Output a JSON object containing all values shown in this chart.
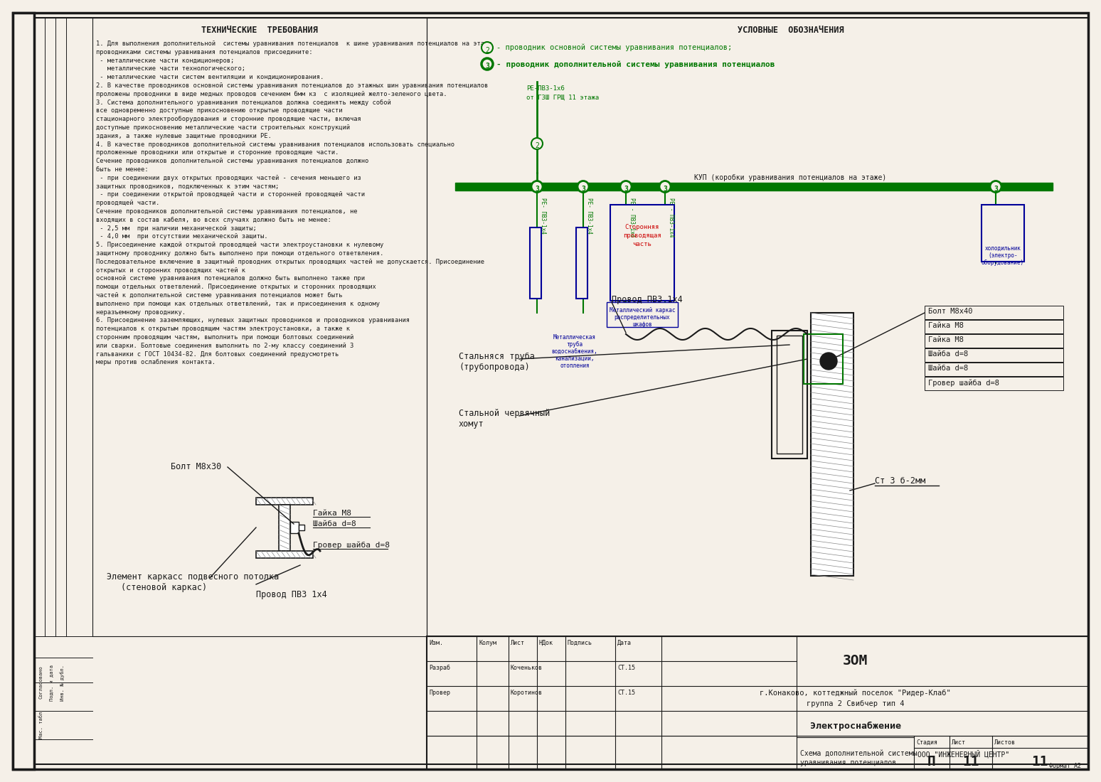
{
  "title": "ТЕХНИЧЕСКИЕ  ТРЕБОВАНИЯ",
  "legend_title": "УСЛОВНЫЕ  ОБОЗНАЧЕНИЯ",
  "legend_item1": "- проводник основной системы уравнивания потенциалов;",
  "legend_item2": "- проводник дополнительной системы уравнивания потенциалов",
  "legend_num1": "2",
  "legend_num2": "3",
  "tech_lines": [
    "1. Для выполнения дополнительной  системы уравнивания потенциалов  к шине уравнивания потенциалов на этаже",
    "проводниками системы уравнивания потенциалов присоедините:",
    " - металлические части кондиционеров;",
    "   металлические части технологического;",
    " - металлические части систем вентиляции и кондиционирования.",
    "2. В качестве проводников основной системы уравнивания потенциалов до этажных шин уравнивания потенциалов",
    "проложены проводники в виде медных проводов сечением 6мм кз  с изоляцией желто-зеленого цвета.",
    "3. Система дополнительного уравнивания потенциалов должна соединять между собой",
    "все одновременно доступные прикосновению открытые проводящие части",
    "стационарного электрооборудования и сторонние проводящие части, включая",
    "доступные прикосновению металлические части строительных конструкций",
    "здания, а также нулевые защитные проводники PE.",
    "4. В качестве проводников дополнительной системы уравнивания потенциалов использовать специально",
    "проложенные проводники или открытые и сторонние проводящие части.",
    "Сечение проводников дополнительной системы уравнивания потенциалов должно",
    "быть не менее:",
    " - при соединении двух открытых проводящих частей - сечения меньшего из",
    "защитных проводников, подключенных к этим частям;",
    " - при соединении открытой проводящей части и сторонней проводящей части",
    "проводящей части.",
    "Сечение проводников дополнительной системы уравнивания потенциалов, не",
    "входящих в состав кабеля, во всех случаях должно быть не менее:",
    " - 2,5 мм  при наличии механической защиты;",
    " - 4,0 мм  при отсутствии механической защиты.",
    "5. Присоединение каждой открытой проводящей части электроустановки к нулевому",
    "защитному проводнику должно быть выполнено при помощи отдельного ответвления.",
    "Последовательное включение в защитный проводник открытых проводящих частей не допускается. Присоединение",
    "открытых и сторонних проводящих частей к",
    "основной системе уравнивания потенциалов должно быть выполнено также при",
    "помощи отдельных ответвлений. Присоединение открытых и сторонних проводящих",
    "частей к дополнительной системе уравнивания потенциалов может быть",
    "выполнено при помощи как отдельных ответвлений, так и присоединения к одному",
    "неразъемному проводнику.",
    "6. Присоединение заземляющих, нулевых защитных проводников и проводников уравнивания",
    "потенциалов к открытым проводящим частям электроустановки, а также к",
    "сторонним проводящим частям, выполнить при помощи болтовых соединений",
    "или сварки. Болтовые соединения выполнить по 2-му классу соединений 3",
    "гальваники с ГОСТ 10434-82. Для болтовых соединений предусмотреть",
    "меры против ослабления контакта."
  ],
  "diagram_title": "КУП (коробки уравнивания потенциалов на этаже)",
  "wire_label_top": "РЕ-ПВЗ-1х6",
  "wire_label_top2": "от ГЗШ ГРЩ 11 этажа",
  "detail1_title": "Провод ПВЗ 1х4",
  "detail2_title": "Болт М8х40",
  "detail2_items": [
    "Гайка М8",
    "Гайка М8",
    "Шайба d=8",
    "Шайба d=8",
    "Гровер шайба d=8"
  ],
  "detail3_title_1": "Стальняся труба",
  "detail3_title_2": "(трубопровода)",
  "detail4_title_1": "Стальной червячный",
  "detail4_title_2": "хомут",
  "detail5_title": "Ст 3 б-2мм",
  "detail_bolt_bottom": "Болт М8х30",
  "detail_nut": "Гайка М8",
  "detail_washer": "Шайба d=8",
  "detail_grov": "Гровер шайба d=8",
  "detail_wire_bottom": "Провод ПВЗ 1х4",
  "detail_element_1": "Элемент каркасс подвесного потолка",
  "detail_element_2": "(стеновой каркас)",
  "stamp_name": "ЗОМ",
  "stamp_location1": "г.Конаково, коттеджный поселок \"Ридер-Клаб\"",
  "stamp_location2": "группа 2 Свибчер тип 4",
  "stamp_subject": "Электроснабжение",
  "stamp_stage": "П",
  "stamp_sheet": "11",
  "stamp_total": "11",
  "stamp_bottom1": "Схема дополнительной системы",
  "stamp_bottom2": "уравнивания потенциалов",
  "stamp_org": "ООО \"ИНЖЕНЕРНЫЙ ЦЕНТР\"",
  "stamp_izm": "Изм.",
  "stamp_kol": "Колум",
  "stamp_list": "Лист",
  "stamp_ndok": "НДок",
  "stamp_podpis": "Подпись",
  "stamp_data": "Дата",
  "stamp_razrab": "Разраб",
  "stamp_prover": "Провер",
  "stamp_razrab_name": "Коченьков",
  "stamp_prover_name": "Коротинов",
  "stamp_razrab_date": "СТ.15",
  "stamp_prover_date": "СТ.15",
  "stamp_stadiya": "Стадия",
  "stamp_list2": "Лист",
  "stamp_listov": "Листов",
  "format_label": "Формат А2",
  "bg_color": "#f5f0e8",
  "line_color": "#1a1a1a",
  "green_color": "#007700",
  "blue_color": "#000099",
  "red_color": "#cc0000",
  "hatch_color": "#555555"
}
